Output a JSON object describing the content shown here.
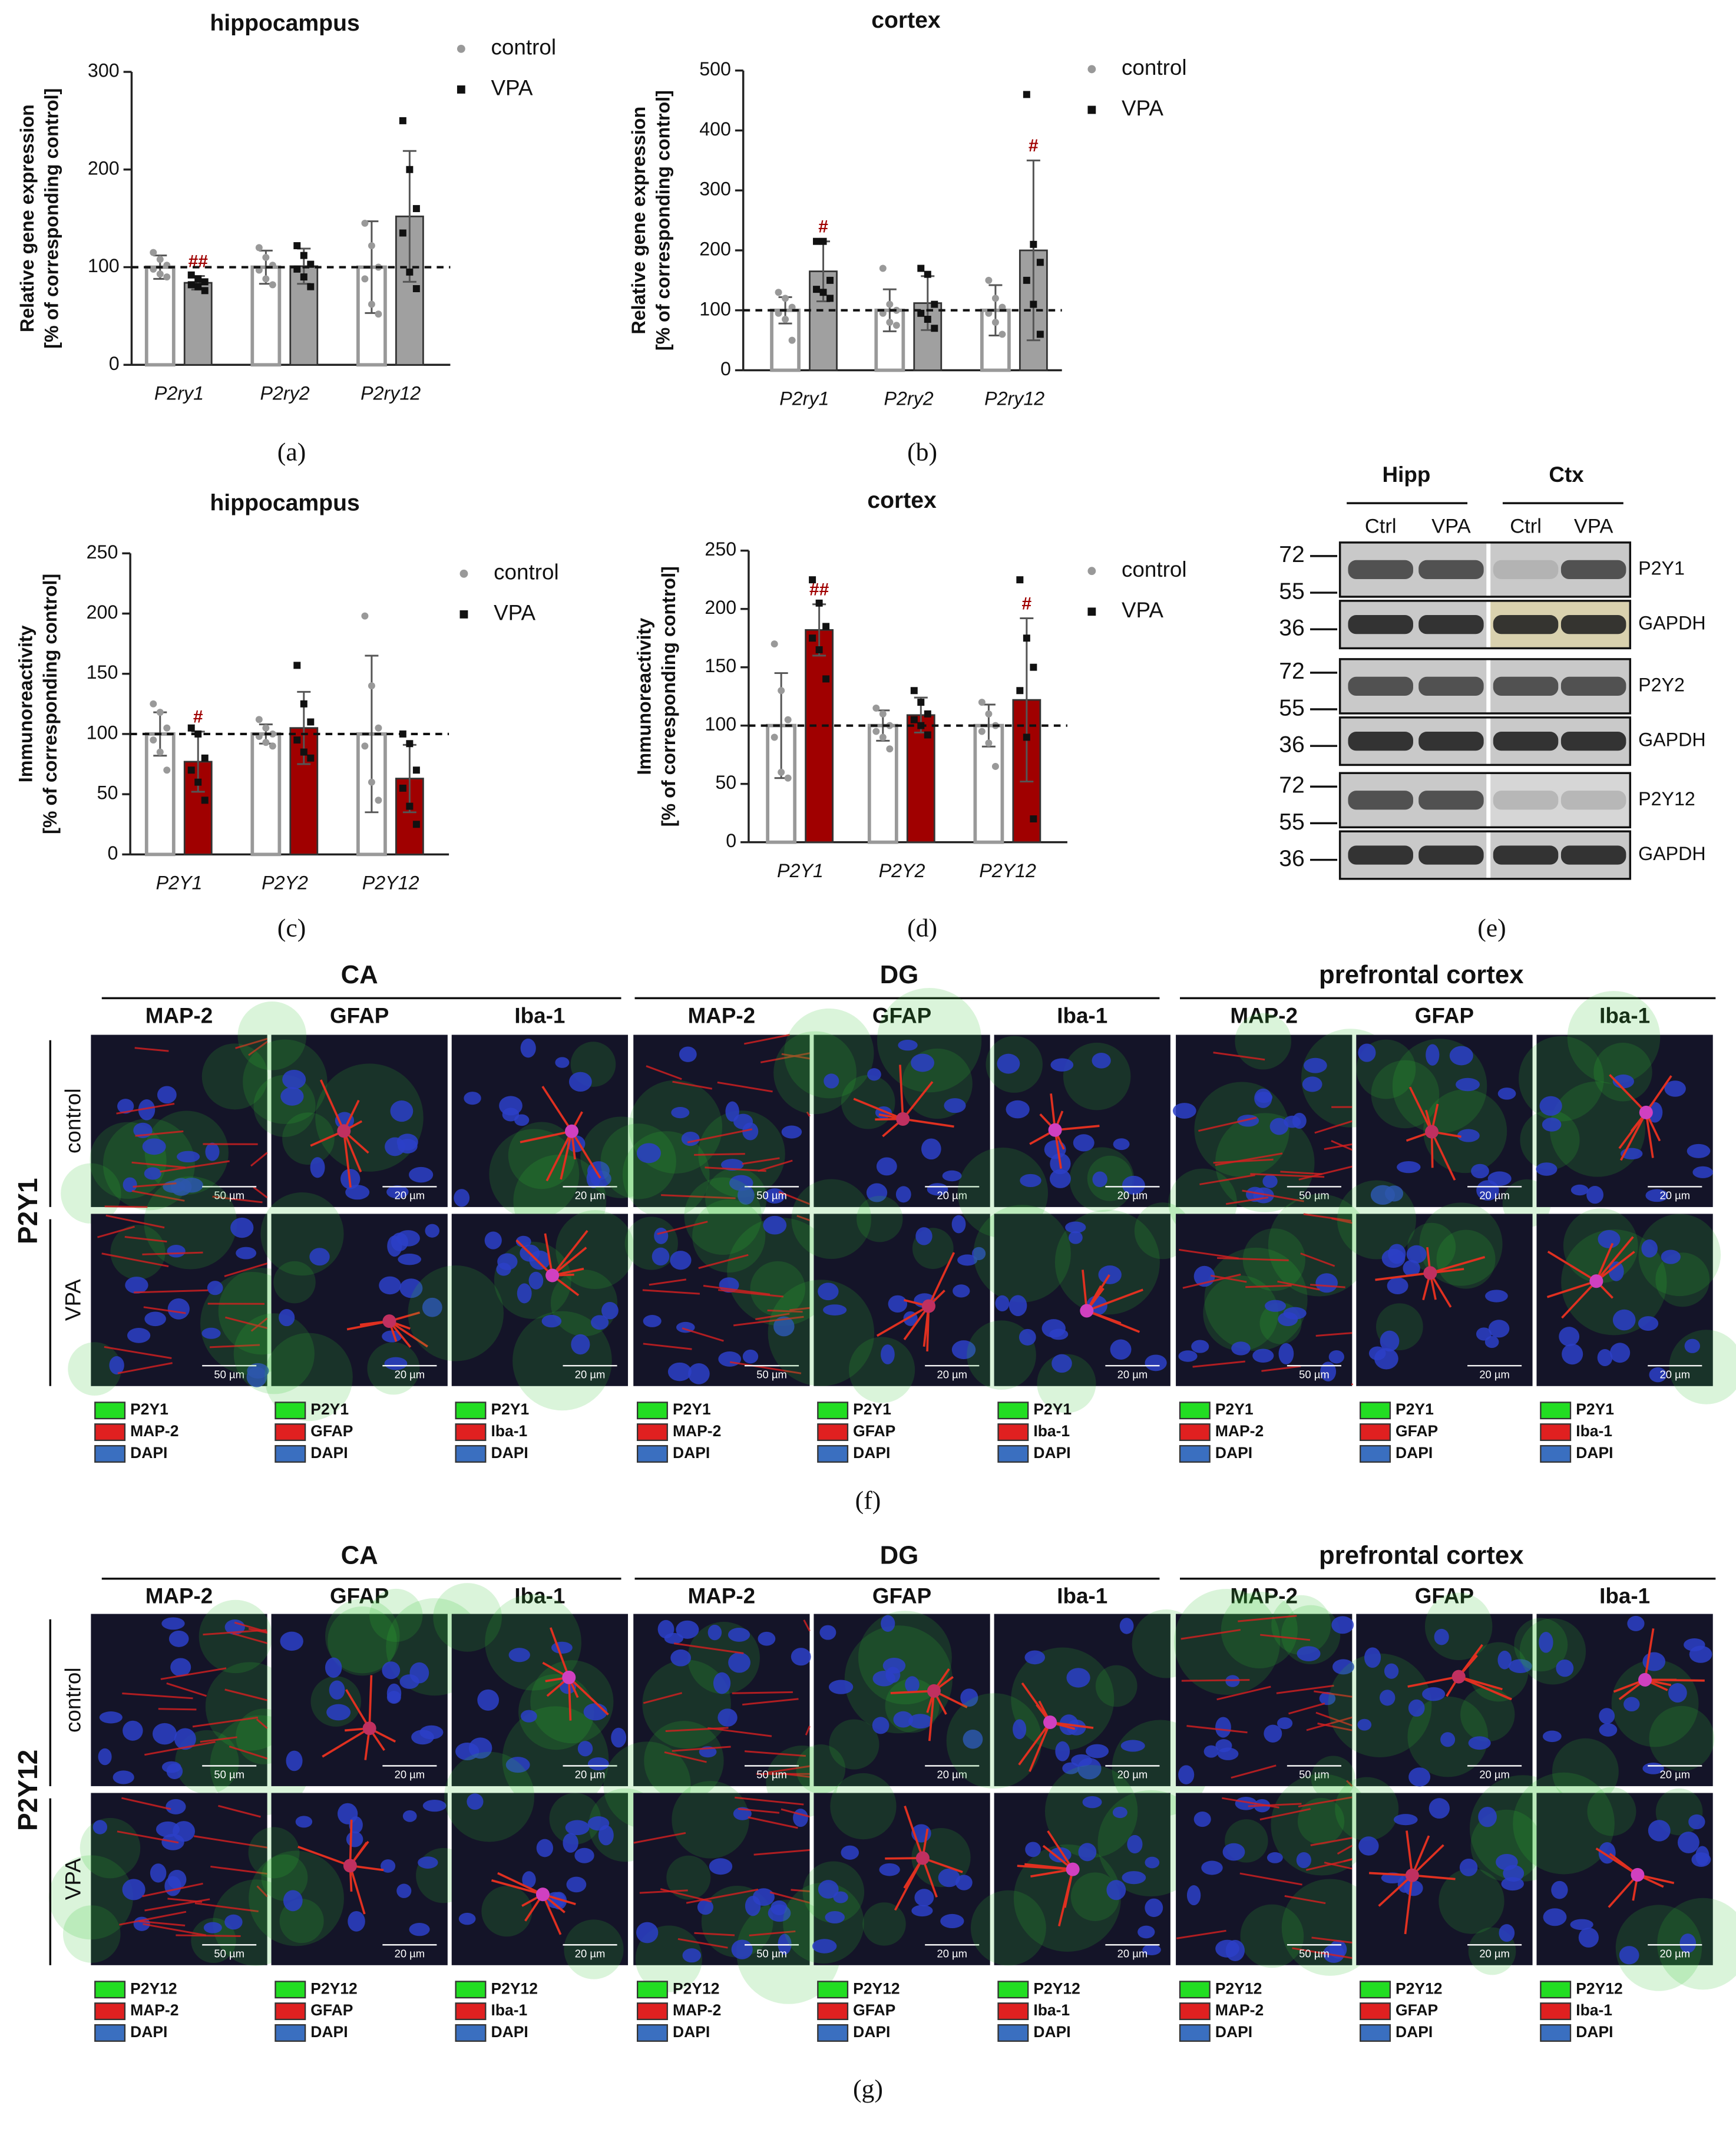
{
  "chart_data": [
    {
      "type": "bar",
      "label": "(a)",
      "title": "hippocampus",
      "ylabel": [
        "Relative gene expression",
        "[% of corresponding control]"
      ],
      "categories": [
        "P2ry1",
        "P2ry2",
        "P2ry12"
      ],
      "ylim": [
        0,
        300
      ],
      "yticks": [
        0,
        100,
        200,
        300
      ],
      "refline": 100,
      "series": [
        {
          "name": "control",
          "color": "#999999",
          "values": [
            100,
            100,
            100
          ],
          "errors": [
            12,
            17,
            47
          ],
          "points": [
            [
              115,
              108,
              102,
              98,
              93,
              90
            ],
            [
              120,
              110,
              102,
              97,
              88,
              82
            ],
            [
              145,
              122,
              100,
              88,
              62,
              52
            ]
          ]
        },
        {
          "name": "VPA",
          "color": "#a0a0a0",
          "values": [
            84,
            101,
            152
          ],
          "errors": [
            7,
            18,
            67
          ],
          "points": [
            [
              92,
              88,
              85,
              82,
              80,
              76
            ],
            [
              122,
              112,
              103,
              98,
              90,
              80
            ],
            [
              250,
              200,
              160,
              135,
              95,
              78
            ]
          ],
          "labels": [
            "##",
            null,
            null
          ]
        }
      ]
    },
    {
      "type": "bar",
      "label": "(b)",
      "title": "cortex",
      "ylabel": [
        "Relative gene expression",
        "[% of corresponding control]"
      ],
      "categories": [
        "P2ry1",
        "P2ry2",
        "P2ry12"
      ],
      "ylim": [
        0,
        500
      ],
      "yticks": [
        0,
        100,
        200,
        300,
        400,
        500
      ],
      "refline": 100,
      "series": [
        {
          "name": "control",
          "color": "#999999",
          "values": [
            100,
            100,
            100
          ],
          "errors": [
            22,
            35,
            42
          ],
          "points": [
            [
              130,
              120,
              105,
              95,
              85,
              50
            ],
            [
              170,
              110,
              100,
              95,
              80,
              75
            ],
            [
              150,
              120,
              105,
              95,
              80,
              60
            ]
          ]
        },
        {
          "name": "VPA",
          "color": "#a0a0a0",
          "values": [
            165,
            112,
            200
          ],
          "errors": [
            50,
            45,
            150
          ],
          "points": [
            [
              215,
              215,
              150,
              135,
              130,
              120
            ],
            [
              170,
              160,
              110,
              95,
              85,
              70
            ],
            [
              460,
              210,
              180,
              150,
              110,
              60
            ]
          ],
          "labels": [
            "#",
            null,
            "#"
          ]
        }
      ]
    },
    {
      "type": "bar",
      "label": "(c)",
      "title": "hippocampus",
      "ylabel": [
        "Immunoreactivity",
        "[% of corresponding control]"
      ],
      "categories": [
        "P2Y1",
        "P2Y2",
        "P2Y12"
      ],
      "ylim": [
        0,
        250
      ],
      "yticks": [
        0,
        50,
        100,
        150,
        200,
        250
      ],
      "refline": 100,
      "series": [
        {
          "name": "control",
          "color": "#999999",
          "values": [
            100,
            100,
            100
          ],
          "errors": [
            18,
            8,
            65
          ],
          "points": [
            [
              125,
              118,
              105,
              95,
              85,
              70
            ],
            [
              112,
              105,
              100,
              98,
              93,
              90
            ],
            [
              198,
              140,
              105,
              90,
              60,
              45
            ]
          ]
        },
        {
          "name": "VPA",
          "color": "#a00000",
          "values": [
            77,
            105,
            63
          ],
          "errors": [
            25,
            30,
            28
          ],
          "points": [
            [
              105,
              100,
              80,
              70,
              60,
              45
            ],
            [
              157,
              125,
              110,
              95,
              85,
              80
            ],
            [
              100,
              92,
              70,
              55,
              40,
              25
            ]
          ],
          "labels": [
            "#",
            null,
            null
          ]
        }
      ]
    },
    {
      "type": "bar",
      "label": "(d)",
      "title": "cortex",
      "ylabel": [
        "Immunoreactivity",
        "[% of corresponding control]"
      ],
      "categories": [
        "P2Y1",
        "P2Y2",
        "P2Y12"
      ],
      "ylim": [
        0,
        250
      ],
      "yticks": [
        0,
        50,
        100,
        150,
        200,
        250
      ],
      "refline": 100,
      "series": [
        {
          "name": "control",
          "color": "#999999",
          "values": [
            100,
            100,
            100
          ],
          "errors": [
            45,
            13,
            18
          ],
          "points": [
            [
              170,
              130,
              105,
              90,
              60,
              55
            ],
            [
              115,
              110,
              100,
              95,
              90,
              80
            ],
            [
              120,
              110,
              100,
              95,
              85,
              65
            ]
          ]
        },
        {
          "name": "VPA",
          "color": "#a00000",
          "values": [
            182,
            109,
            122
          ],
          "errors": [
            22,
            15,
            70
          ],
          "points": [
            [
              225,
              205,
              185,
              175,
              165,
              140
            ],
            [
              130,
              120,
              110,
              105,
              100,
              92
            ],
            [
              225,
              175,
              150,
              130,
              90,
              20
            ]
          ],
          "labels": [
            "##",
            null,
            "#"
          ]
        }
      ]
    }
  ],
  "blot": {
    "label": "(e)",
    "groups": [
      "Hipp",
      "Ctx"
    ],
    "lanes": [
      "Ctrl",
      "VPA",
      "Ctrl",
      "VPA"
    ],
    "strips": [
      {
        "markers": [
          72,
          55,
          36
        ],
        "proteins": [
          "P2Y1",
          "GAPDH"
        ]
      },
      {
        "markers": [
          72,
          55,
          36
        ],
        "proteins": [
          "P2Y2",
          "GAPDH"
        ]
      },
      {
        "markers": [
          72,
          55,
          36
        ],
        "proteins": [
          "P2Y12",
          "GAPDH"
        ]
      }
    ]
  },
  "micrographs": [
    {
      "label": "(f)",
      "receptor": "P2Y1",
      "rows": [
        "control",
        "VPA"
      ],
      "regions": [
        "CA",
        "DG",
        "prefrontal cortex"
      ],
      "columns": [
        {
          "stain": "MAP-2",
          "scale": "50 µm",
          "legend": [
            "P2Y1",
            "MAP-2",
            "DAPI"
          ]
        },
        {
          "stain": "GFAP",
          "scale": "20 µm",
          "legend": [
            "P2Y1",
            "GFAP",
            "DAPI"
          ]
        },
        {
          "stain": "Iba-1",
          "scale": "20 µm",
          "legend": [
            "P2Y1",
            "Iba-1",
            "DAPI"
          ]
        },
        {
          "stain": "MAP-2",
          "scale": "50 µm",
          "legend": [
            "P2Y1",
            "MAP-2",
            "DAPI"
          ]
        },
        {
          "stain": "GFAP",
          "scale": "20 µm",
          "legend": [
            "P2Y1",
            "GFAP",
            "DAPI"
          ]
        },
        {
          "stain": "Iba-1",
          "scale": "20 µm",
          "legend": [
            "P2Y1",
            "Iba-1",
            "DAPI"
          ]
        },
        {
          "stain": "MAP-2",
          "scale": "50 µm",
          "legend": [
            "P2Y1",
            "MAP-2",
            "DAPI"
          ]
        },
        {
          "stain": "GFAP",
          "scale": "20 µm",
          "legend": [
            "P2Y1",
            "GFAP",
            "DAPI"
          ]
        },
        {
          "stain": "Iba-1",
          "scale": "20 µm",
          "legend": [
            "P2Y1",
            "Iba-1",
            "DAPI"
          ]
        }
      ]
    },
    {
      "label": "(g)",
      "receptor": "P2Y12",
      "rows": [
        "control",
        "VPA"
      ],
      "regions": [
        "CA",
        "DG",
        "prefrontal cortex"
      ],
      "columns": [
        {
          "stain": "MAP-2",
          "scale": "50 µm",
          "legend": [
            "P2Y12",
            "MAP-2",
            "DAPI"
          ]
        },
        {
          "stain": "GFAP",
          "scale": "20 µm",
          "legend": [
            "P2Y12",
            "GFAP",
            "DAPI"
          ]
        },
        {
          "stain": "Iba-1",
          "scale": "20 µm",
          "legend": [
            "P2Y12",
            "Iba-1",
            "DAPI"
          ]
        },
        {
          "stain": "MAP-2",
          "scale": "50 µm",
          "legend": [
            "P2Y12",
            "MAP-2",
            "DAPI"
          ]
        },
        {
          "stain": "GFAP",
          "scale": "20 µm",
          "legend": [
            "P2Y12",
            "GFAP",
            "DAPI"
          ]
        },
        {
          "stain": "Iba-1",
          "scale": "20 µm",
          "legend": [
            "P2Y12",
            "Iba-1",
            "DAPI"
          ]
        },
        {
          "stain": "MAP-2",
          "scale": "50 µm",
          "legend": [
            "P2Y12",
            "MAP-2",
            "DAPI"
          ]
        },
        {
          "stain": "GFAP",
          "scale": "20 µm",
          "legend": [
            "P2Y12",
            "GFAP",
            "DAPI"
          ]
        },
        {
          "stain": "Iba-1",
          "scale": "20 µm",
          "legend": [
            "P2Y12",
            "Iba-1",
            "DAPI"
          ]
        }
      ]
    }
  ]
}
